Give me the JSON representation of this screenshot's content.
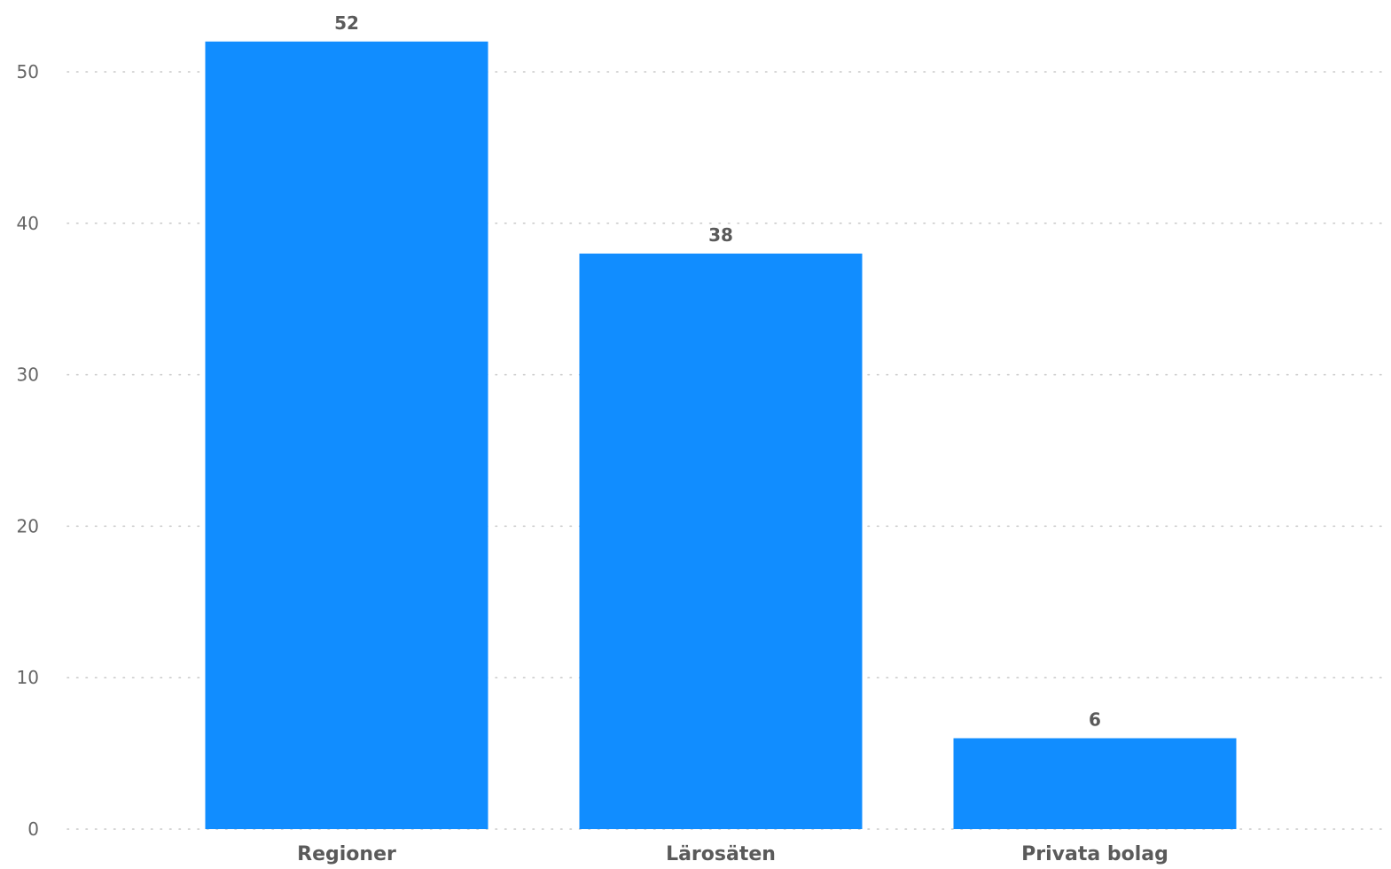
{
  "chart_data": {
    "type": "bar",
    "title": "",
    "xlabel": "",
    "ylabel": "",
    "categories": [
      "Regioner",
      "Lärosäten",
      "Privata bolag"
    ],
    "values": [
      52,
      38,
      6
    ],
    "data_labels": [
      "52",
      "38",
      "6"
    ],
    "ylim": [
      0,
      52
    ],
    "yticks": [
      0,
      10,
      20,
      30,
      40,
      50
    ],
    "ytick_labels": [
      "0",
      "10",
      "20",
      "30",
      "40",
      "50"
    ],
    "grid": true,
    "legend": "none",
    "colors": {
      "bar": "#118DFF",
      "gridline": "#C8C8C8",
      "label": "#5A5A5A",
      "tick": "#666666"
    }
  }
}
